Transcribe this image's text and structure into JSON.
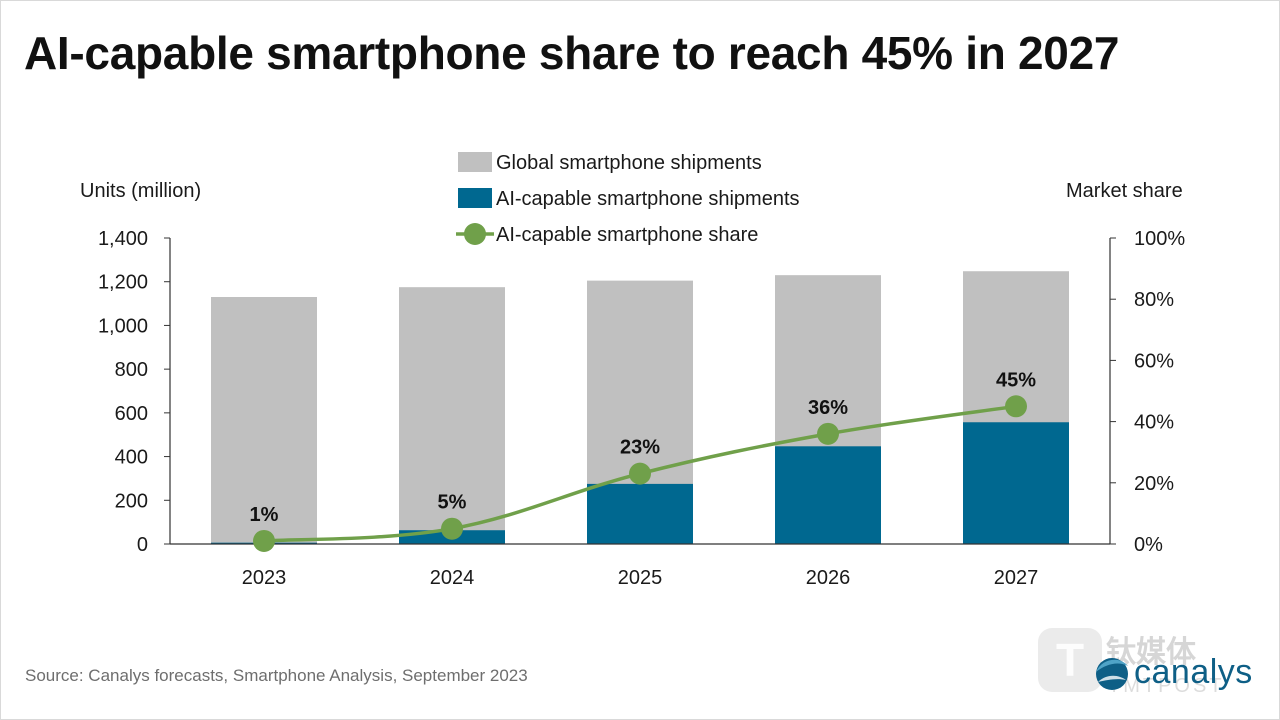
{
  "title": "AI-capable smartphone share to reach 45% in 2027",
  "source": "Source: Canalys forecasts, Smartphone Analysis, September 2023",
  "brand": {
    "name": "canalys",
    "accent": "#0e5f86"
  },
  "watermark": {
    "text": "钛媒体",
    "subtext": "TMTPOST"
  },
  "chart_data": {
    "type": "bar",
    "stacked_overlay": true,
    "categories": [
      "2023",
      "2024",
      "2025",
      "2026",
      "2027"
    ],
    "series": [
      {
        "name": "Global smartphone shipments",
        "kind": "bar",
        "axis": "left",
        "color": "#c0c0c0",
        "values": [
          1130,
          1175,
          1205,
          1230,
          1248
        ]
      },
      {
        "name": "AI-capable smartphone shipments",
        "kind": "bar",
        "axis": "left",
        "color": "#006890",
        "values": [
          6,
          63,
          275,
          447,
          557
        ]
      },
      {
        "name": "AI-capable smartphone share",
        "kind": "line",
        "axis": "right",
        "color": "#70a04a",
        "values": [
          1,
          5,
          23,
          36,
          45
        ],
        "labels": [
          "1%",
          "5%",
          "23%",
          "36%",
          "45%"
        ]
      }
    ],
    "ylabel": "Units (million)",
    "ylim": [
      0,
      1400
    ],
    "yticks": [
      "0",
      "200",
      "400",
      "600",
      "800",
      "1,000",
      "1,200",
      "1,400"
    ],
    "y2label": "Market share",
    "y2lim": [
      0,
      100
    ],
    "y2ticks": [
      "0%",
      "20%",
      "40%",
      "60%",
      "80%",
      "100%"
    ],
    "grid": false,
    "legend_position": "top-center"
  }
}
